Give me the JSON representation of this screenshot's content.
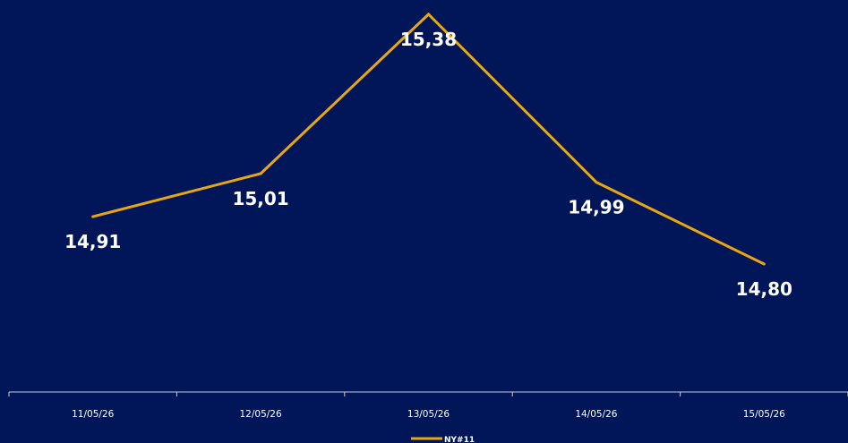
{
  "chart_data": {
    "type": "line",
    "categories": [
      "11/05/26",
      "12/05/26",
      "13/05/26",
      "14/05/26",
      "15/05/26"
    ],
    "series": [
      {
        "name": "NY#11",
        "values": [
          14.91,
          15.01,
          15.38,
          14.99,
          14.8
        ],
        "labels": [
          "14,91",
          "15,01",
          "15,38",
          "14,99",
          "14,80"
        ]
      }
    ],
    "title": "",
    "xlabel": "",
    "ylabel": "",
    "grid": false,
    "legend": "bottom-center",
    "colors": {
      "background": "#001659",
      "line": "#E8A711",
      "text": "#FFFFFF",
      "axis": "#C8CCD8"
    }
  }
}
